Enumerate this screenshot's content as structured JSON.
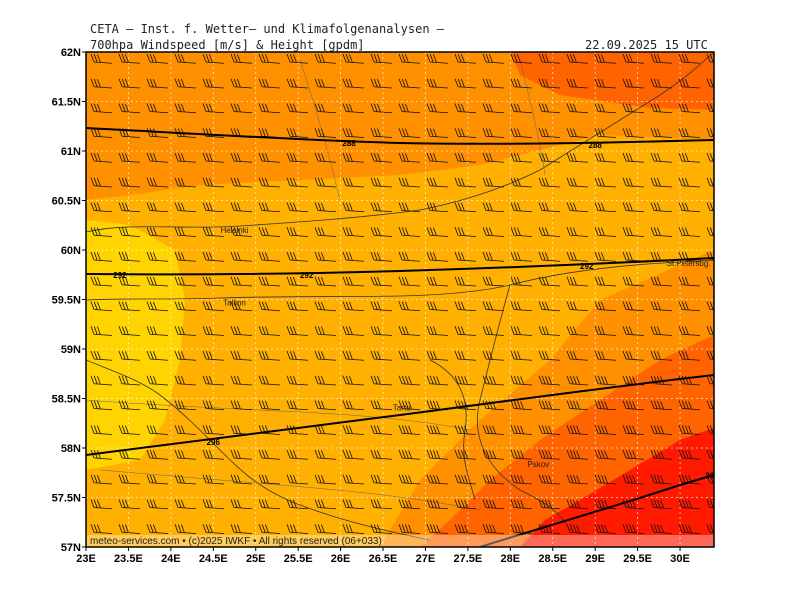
{
  "header": {
    "line1": "CETA — Inst. f. Wetter— und Klimafolgenanalysen —",
    "line2_left": "700hpa Windspeed [m/s] & Height [gpdm]",
    "line2_right": "22.09.2025 15 UTC"
  },
  "axes": {
    "lon_ticks": [
      "23E",
      "23.5E",
      "24E",
      "24.5E",
      "25E",
      "25.5E",
      "26E",
      "26.5E",
      "27E",
      "27.5E",
      "28E",
      "28.5E",
      "29E",
      "29.5E",
      "30E"
    ],
    "lat_ticks": [
      "62N",
      "61.5N",
      "61N",
      "60.5N",
      "60N",
      "59.5N",
      "59N",
      "58.5N",
      "58N",
      "57.5N",
      "57N"
    ],
    "lon_range": [
      23,
      30.4
    ],
    "lat_range": [
      57,
      62
    ]
  },
  "cities": [
    {
      "name": "Helsinki",
      "lon": 24.75,
      "lat": 60.17
    },
    {
      "name": "Tallinn",
      "lon": 24.75,
      "lat": 59.44
    },
    {
      "name": "Tartu",
      "lon": 26.72,
      "lat": 58.38
    },
    {
      "name": "Pskov",
      "lon": 28.33,
      "lat": 57.81
    },
    {
      "name": "St.Petersbg.",
      "lon": 30.1,
      "lat": 59.84
    }
  ],
  "contours": [
    {
      "label": "288",
      "labels_at": [
        {
          "lon": 26.1,
          "lat": 61.08
        },
        {
          "lon": 29.0,
          "lat": 61.06
        }
      ]
    },
    {
      "label": "292",
      "labels_at": [
        {
          "lon": 23.4,
          "lat": 59.75
        },
        {
          "lon": 25.6,
          "lat": 59.75
        },
        {
          "lon": 28.9,
          "lat": 59.84
        }
      ]
    },
    {
      "label": "296",
      "labels_at": [
        {
          "lon": 24.5,
          "lat": 58.06
        }
      ]
    },
    {
      "label": "30",
      "labels_at": [
        {
          "lon": 30.35,
          "lat": 57.72
        }
      ]
    }
  ],
  "colors": {
    "light": "#ffd400",
    "medium": "#ffb000",
    "strong": "#ff9000",
    "stronger": "#ff6400",
    "max": "#ff1a00"
  },
  "footer": "meteo-services.com • (c)2025 IWKF • All rights reserved (06+033)"
}
